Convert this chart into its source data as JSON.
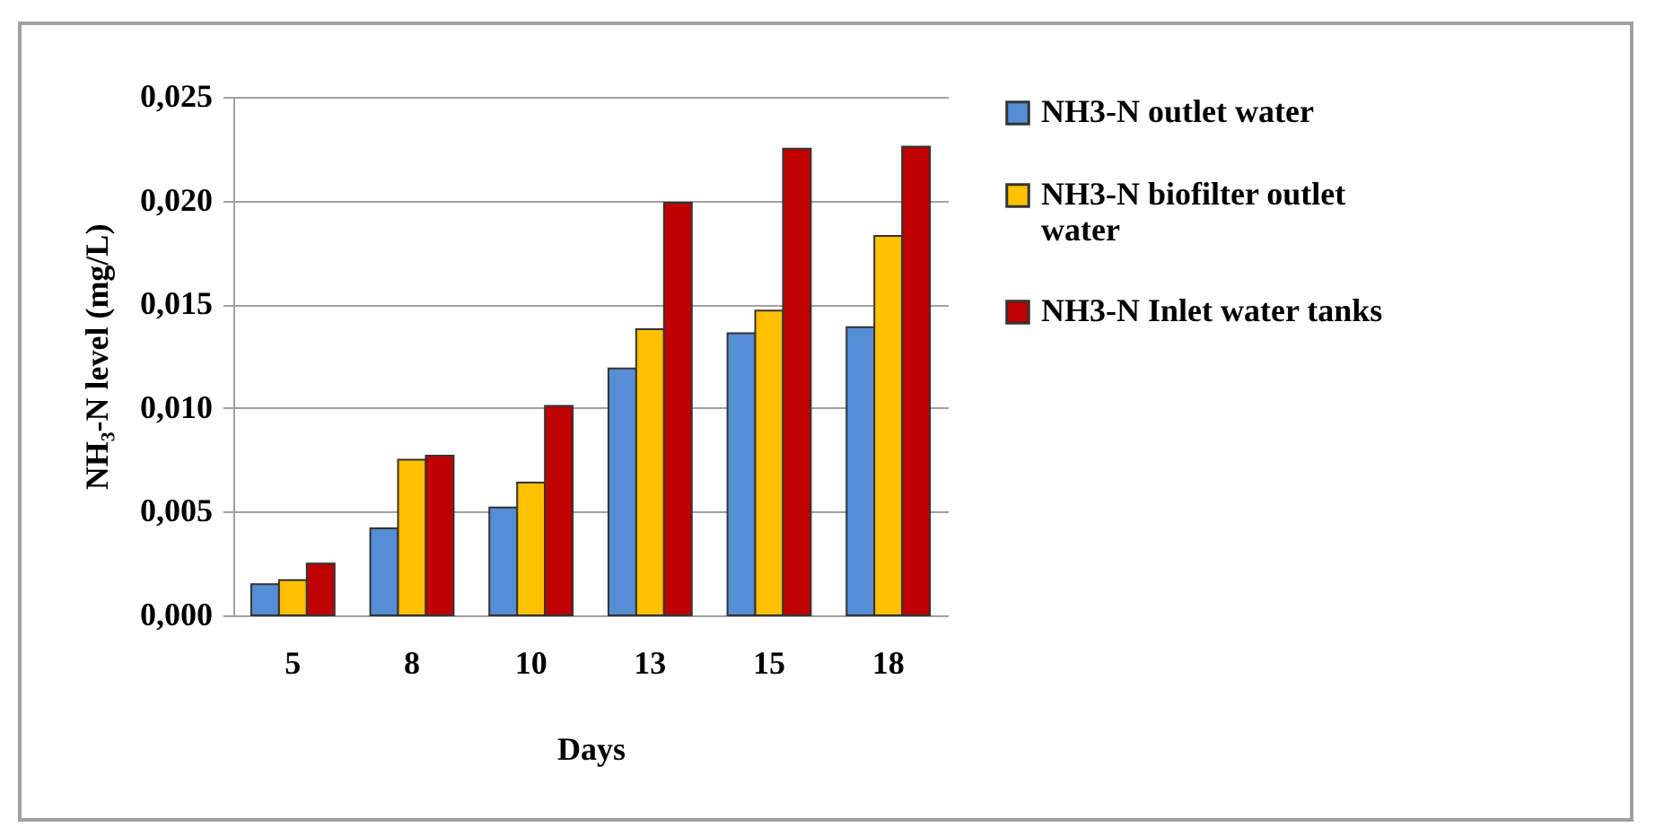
{
  "chart_data": {
    "type": "bar",
    "xlabel": "Days",
    "ylabel": "NH₃-N level (mg/L)",
    "categories": [
      "5",
      "8",
      "10",
      "13",
      "15",
      "18"
    ],
    "series": [
      {
        "name": "NH3-N outlet water",
        "color": "#558ed5",
        "values": [
          0.0015,
          0.0042,
          0.0052,
          0.0119,
          0.0136,
          0.0139
        ]
      },
      {
        "name": "NH3-N biofilter outlet water",
        "color": "#ffc000",
        "values": [
          0.0017,
          0.0075,
          0.0064,
          0.0138,
          0.0147,
          0.0183
        ]
      },
      {
        "name": "NH3-N Inlet water tanks",
        "color": "#c00000",
        "values": [
          0.0025,
          0.0077,
          0.0101,
          0.0199,
          0.0225,
          0.0226
        ]
      }
    ],
    "ylim": [
      0,
      0.025
    ],
    "yticks": [
      {
        "value": 0,
        "label": "0,000"
      },
      {
        "value": 0.005,
        "label": "0,005"
      },
      {
        "value": 0.01,
        "label": "0,010"
      },
      {
        "value": 0.015,
        "label": "0,015"
      },
      {
        "value": 0.02,
        "label": "0,020"
      },
      {
        "value": 0.025,
        "label": "0,025"
      }
    ],
    "grid": "y",
    "legend": "right"
  }
}
